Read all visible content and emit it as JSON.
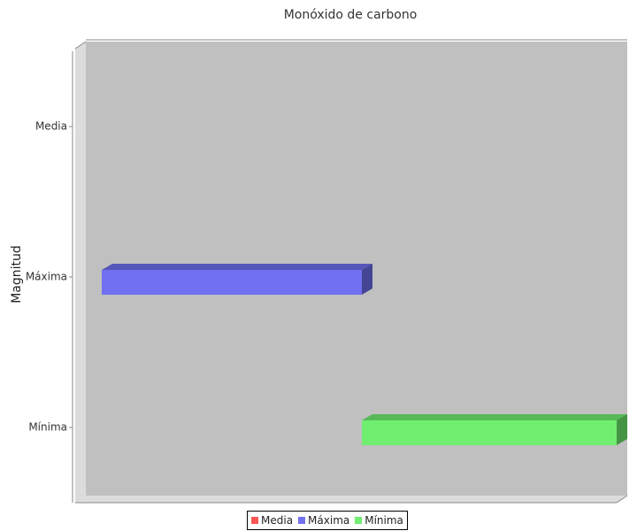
{
  "chart_data": {
    "type": "bar",
    "orientation": "horizontal",
    "style": "3d",
    "title": "Monóxido de carbono",
    "ylabel": "Magnitud",
    "xlabel": "",
    "categories": [
      "Media",
      "Máxima",
      "Mínima"
    ],
    "bars": [
      {
        "category": "Media",
        "start": null,
        "end": null
      },
      {
        "category": "Máxima",
        "start": 0.03,
        "end": 0.52
      },
      {
        "category": "Mínima",
        "start": 0.52,
        "end": 1.0
      }
    ],
    "series": [
      {
        "name": "Media",
        "color": "#ff5555"
      },
      {
        "name": "Máxima",
        "color": "#7070f0"
      },
      {
        "name": "Mínima",
        "color": "#70ee70"
      }
    ],
    "legend_position": "bottom",
    "plot_background": "#c0c0c0",
    "x_axis_ticks_visible": false
  }
}
